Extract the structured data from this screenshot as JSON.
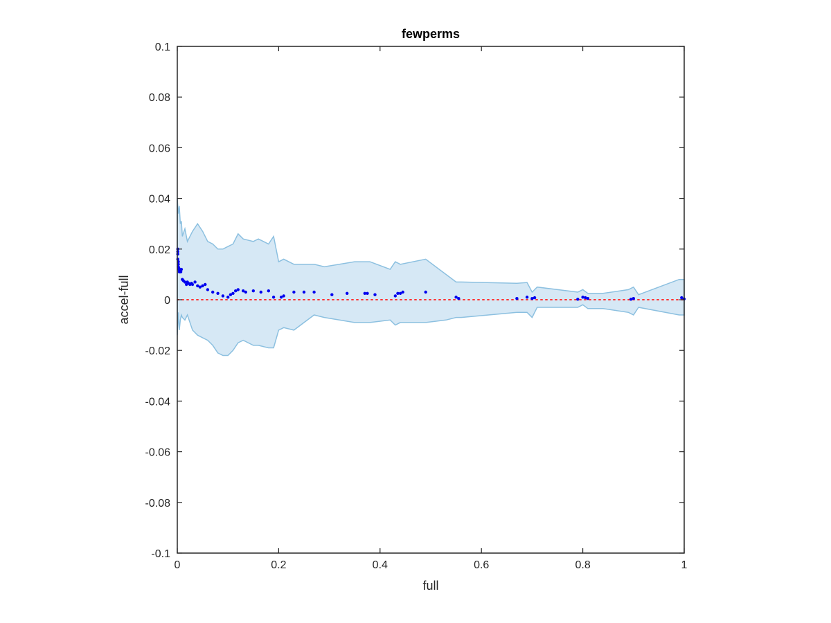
{
  "chart_data": {
    "type": "scatter",
    "title": "fewperms",
    "xlabel": "full",
    "ylabel": "accel-full",
    "xlim": [
      0,
      1
    ],
    "ylim": [
      -0.1,
      0.1
    ],
    "xticks": [
      0,
      0.2,
      0.4,
      0.6,
      0.8,
      1
    ],
    "xtick_labels": [
      "0",
      "0.2",
      "0.4",
      "0.6",
      "0.8",
      "1"
    ],
    "yticks": [
      -0.1,
      -0.08,
      -0.06,
      -0.04,
      -0.02,
      0,
      0.02,
      0.04,
      0.06,
      0.08,
      0.1
    ],
    "ytick_labels": [
      "-0.1",
      "-0.08",
      "-0.06",
      "-0.04",
      "-0.02",
      "0",
      "0.02",
      "0.04",
      "0.06",
      "0.08",
      "0.1"
    ],
    "grid": false,
    "reference_line": {
      "y": 0,
      "color": "#ff3333",
      "style": "dotted"
    },
    "band": {
      "fill": "#d6e8f5",
      "stroke": "#8cc0e0",
      "x": [
        0,
        0.002,
        0.004,
        0.006,
        0.008,
        0.01,
        0.015,
        0.02,
        0.03,
        0.04,
        0.05,
        0.06,
        0.07,
        0.08,
        0.09,
        0.1,
        0.11,
        0.12,
        0.13,
        0.15,
        0.16,
        0.18,
        0.19,
        0.2,
        0.21,
        0.23,
        0.27,
        0.29,
        0.35,
        0.38,
        0.42,
        0.43,
        0.44,
        0.49,
        0.53,
        0.55,
        0.56,
        0.67,
        0.69,
        0.7,
        0.71,
        0.79,
        0.8,
        0.81,
        0.84,
        0.89,
        0.9,
        0.91,
        0.99,
        1
      ],
      "upper": [
        0.04,
        0.034,
        0.037,
        0.03,
        0.031,
        0.025,
        0.028,
        0.023,
        0.027,
        0.03,
        0.027,
        0.023,
        0.022,
        0.02,
        0.02,
        0.021,
        0.022,
        0.026,
        0.024,
        0.023,
        0.024,
        0.022,
        0.025,
        0.015,
        0.016,
        0.014,
        0.014,
        0.013,
        0.015,
        0.015,
        0.012,
        0.015,
        0.014,
        0.016,
        0.01,
        0.007,
        0.007,
        0.0065,
        0.0068,
        0.003,
        0.005,
        0.003,
        0.004,
        0.0025,
        0.0025,
        0.004,
        0.005,
        0.002,
        0.008,
        0.008
      ],
      "lower": [
        -0.014,
        -0.005,
        -0.012,
        -0.008,
        -0.006,
        -0.007,
        -0.008,
        -0.006,
        -0.012,
        -0.014,
        -0.015,
        -0.016,
        -0.018,
        -0.021,
        -0.022,
        -0.022,
        -0.02,
        -0.017,
        -0.016,
        -0.018,
        -0.018,
        -0.019,
        -0.019,
        -0.012,
        -0.011,
        -0.012,
        -0.006,
        -0.007,
        -0.009,
        -0.009,
        -0.008,
        -0.01,
        -0.009,
        -0.009,
        -0.008,
        -0.007,
        -0.007,
        -0.005,
        -0.005,
        -0.007,
        -0.003,
        -0.003,
        -0.002,
        -0.0035,
        -0.0035,
        -0.005,
        -0.006,
        -0.003,
        -0.006,
        -0.006
      ]
    },
    "series": [
      {
        "color": "#0000ee",
        "x": [
          0.001,
          0.001,
          0.001,
          0.001,
          0.002,
          0.002,
          0.002,
          0.003,
          0.003,
          0.004,
          0.004,
          0.005,
          0.006,
          0.007,
          0.008,
          0.01,
          0.012,
          0.015,
          0.018,
          0.02,
          0.022,
          0.025,
          0.028,
          0.03,
          0.035,
          0.04,
          0.045,
          0.05,
          0.055,
          0.06,
          0.07,
          0.08,
          0.09,
          0.1,
          0.105,
          0.11,
          0.115,
          0.12,
          0.13,
          0.135,
          0.15,
          0.165,
          0.18,
          0.19,
          0.205,
          0.21,
          0.23,
          0.25,
          0.27,
          0.305,
          0.335,
          0.37,
          0.375,
          0.39,
          0.43,
          0.435,
          0.44,
          0.445,
          0.49,
          0.55,
          0.555,
          0.67,
          0.69,
          0.7,
          0.705,
          0.79,
          0.8,
          0.805,
          0.81,
          0.895,
          0.9,
          0.995,
          1
        ],
        "y": [
          0.02,
          0.019,
          0.018,
          0.016,
          0.015,
          0.014,
          0.013,
          0.012,
          0.0125,
          0.011,
          0.012,
          0.011,
          0.0115,
          0.011,
          0.012,
          0.008,
          0.0075,
          0.007,
          0.006,
          0.007,
          0.0065,
          0.006,
          0.0065,
          0.006,
          0.007,
          0.0055,
          0.005,
          0.0055,
          0.006,
          0.004,
          0.003,
          0.0025,
          0.0015,
          0.001,
          0.002,
          0.0025,
          0.0035,
          0.004,
          0.0035,
          0.003,
          0.0035,
          0.003,
          0.0035,
          0.001,
          0.001,
          0.0015,
          0.003,
          0.003,
          0.003,
          0.002,
          0.0025,
          0.0025,
          0.0025,
          0.002,
          0.0015,
          0.0025,
          0.0025,
          0.003,
          0.003,
          0.001,
          0.0005,
          0.0005,
          0.001,
          0.0005,
          0.0008,
          0.0002,
          0.001,
          0.0008,
          0.0005,
          0.0002,
          0.0005,
          0.0008,
          0.0003
        ]
      }
    ]
  }
}
